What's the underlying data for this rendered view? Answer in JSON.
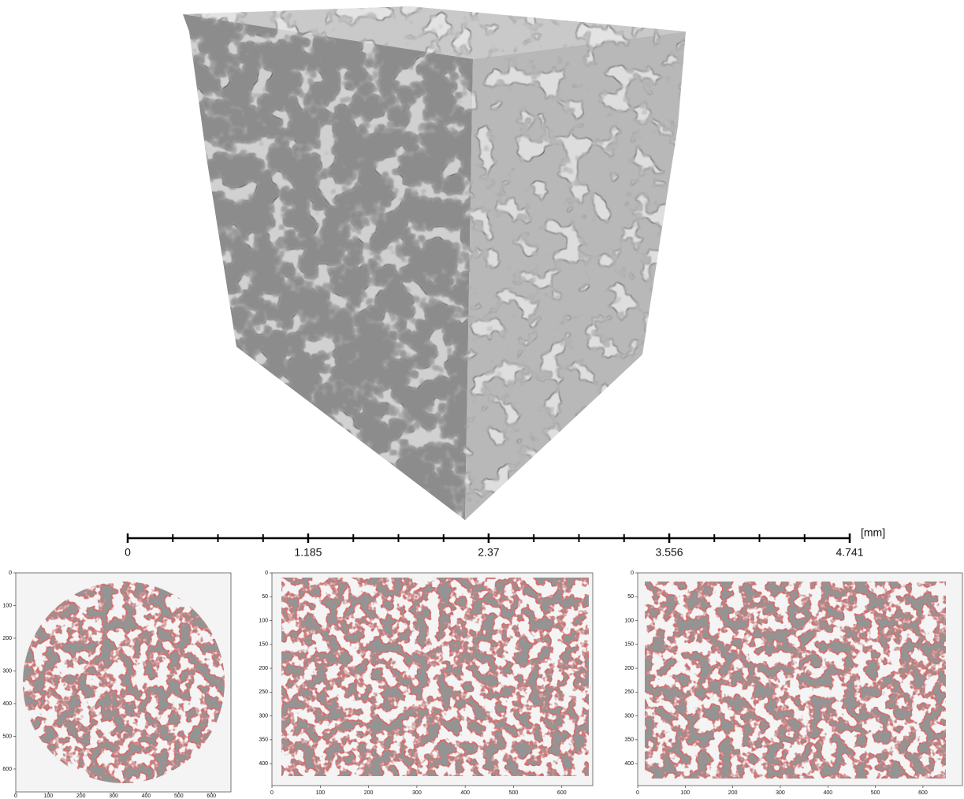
{
  "scale_bar": {
    "unit": "[mm]",
    "lim": [
      0,
      4.741
    ],
    "ticks": [
      0,
      1.185,
      2.37,
      3.556,
      4.741
    ],
    "minor_divisions": 4
  },
  "slices": [
    {
      "xlim": [
        0,
        660
      ],
      "ylim": [
        0,
        670
      ],
      "xticks": [
        0,
        100,
        200,
        300,
        400,
        500,
        600
      ],
      "yticks": [
        0,
        100,
        200,
        300,
        400,
        500,
        600
      ]
    },
    {
      "xlim": [
        0,
        664
      ],
      "ylim": [
        0,
        446
      ],
      "xticks": [
        0,
        100,
        200,
        300,
        400,
        500,
        600
      ],
      "yticks": [
        0,
        50,
        100,
        150,
        200,
        250,
        300,
        350,
        400
      ]
    },
    {
      "xlim": [
        0,
        683
      ],
      "ylim": [
        0,
        446
      ],
      "xticks": [
        0,
        100,
        200,
        300,
        400,
        500,
        600
      ],
      "yticks": [
        0,
        50,
        100,
        150,
        200,
        250,
        300,
        350,
        400
      ]
    }
  ]
}
